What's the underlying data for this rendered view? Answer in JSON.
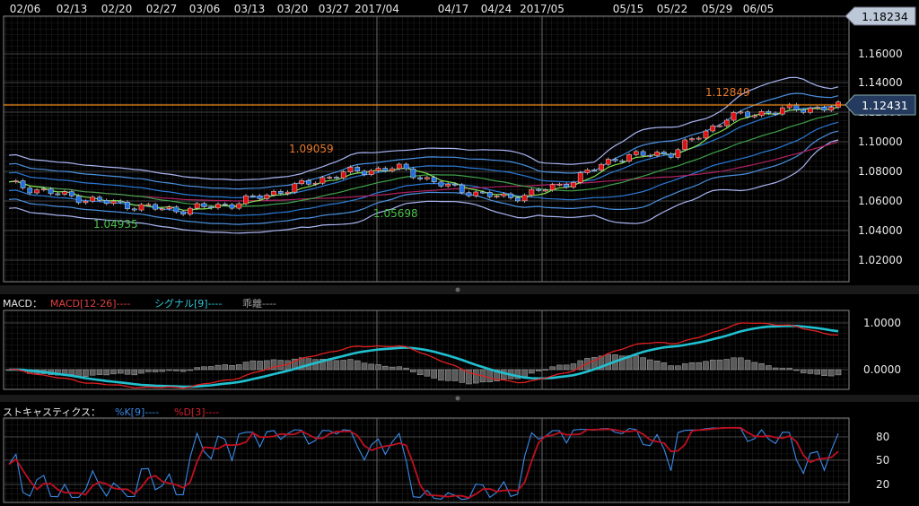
{
  "dates": [
    "02/06",
    "02/13",
    "02/20",
    "02/27",
    "03/06",
    "03/13",
    "03/20",
    "03/27",
    "2017/04",
    "04/17",
    "04/24",
    "2017/05",
    "05/15",
    "05/22",
    "05/29",
    "06/05"
  ],
  "price_panel": {
    "y_ticks": [
      "1.16000",
      "1.14000",
      "1.12000",
      "1.10000",
      "1.08000",
      "1.06000",
      "1.04000",
      "1.02000"
    ],
    "top_badge": "1.18234",
    "current_badge": "1.12431",
    "annotations": {
      "high1": "1.09059",
      "low1": "1.04935",
      "low2": "1.05698",
      "high2": "1.12849"
    },
    "colors": {
      "up": "#e01010",
      "down": "#1e6fe0",
      "ma_short": "#7de04a",
      "ma_mid": "#3fa04a",
      "ma_long": "#b02060",
      "band_inner": "#2a7ad8",
      "band_mid": "#4a90e0",
      "band_outer": "#a8b4f0",
      "current_line": "#f08a1a"
    }
  },
  "macd_panel": {
    "label": "MACD：",
    "legend_macd": "MACD[12-26]----",
    "legend_signal": "シグナル[9]----",
    "legend_hist": "乖離----",
    "y_ticks": [
      "1.0000",
      "0.0000"
    ],
    "colors": {
      "macd": "#e02020",
      "signal": "#20c0d0",
      "hist": "#909090"
    }
  },
  "stoch_panel": {
    "label": "ストキャスティクス：",
    "legend_k": "%K[9]----",
    "legend_d": "%D[3]----",
    "y_ticks": [
      "80",
      "50",
      "20"
    ],
    "colors": {
      "k": "#3a8ae8",
      "d": "#c01020"
    }
  },
  "chart_data": [
    {
      "type": "candlestick",
      "x": [
        "02/06",
        "02/13",
        "02/20",
        "02/27",
        "03/06",
        "03/13",
        "03/20",
        "03/27",
        "2017/04",
        "04/17",
        "04/24",
        "2017/05",
        "05/15",
        "05/22",
        "05/29",
        "06/05"
      ],
      "close_approx": [
        1.072,
        1.064,
        1.058,
        1.054,
        1.058,
        1.068,
        1.079,
        1.083,
        1.069,
        1.062,
        1.071,
        1.09,
        1.093,
        1.117,
        1.122,
        1.124
      ],
      "indicators": [
        "moving averages",
        "bollinger bands"
      ],
      "ylim": [
        1.01,
        1.17
      ],
      "annotations": [
        "1.09059",
        "1.04935",
        "1.05698",
        "1.12849"
      ],
      "current_value": 1.12431
    },
    {
      "type": "line",
      "series": [
        {
          "name": "MACD[12-26]"
        },
        {
          "name": "シグナル[9]"
        },
        {
          "name": "乖離"
        }
      ],
      "y_ticks": [
        1.0,
        0.0
      ]
    },
    {
      "type": "line",
      "series": [
        {
          "name": "%K[9]"
        },
        {
          "name": "%D[3]"
        }
      ],
      "y_ticks": [
        80,
        50,
        20
      ]
    }
  ]
}
